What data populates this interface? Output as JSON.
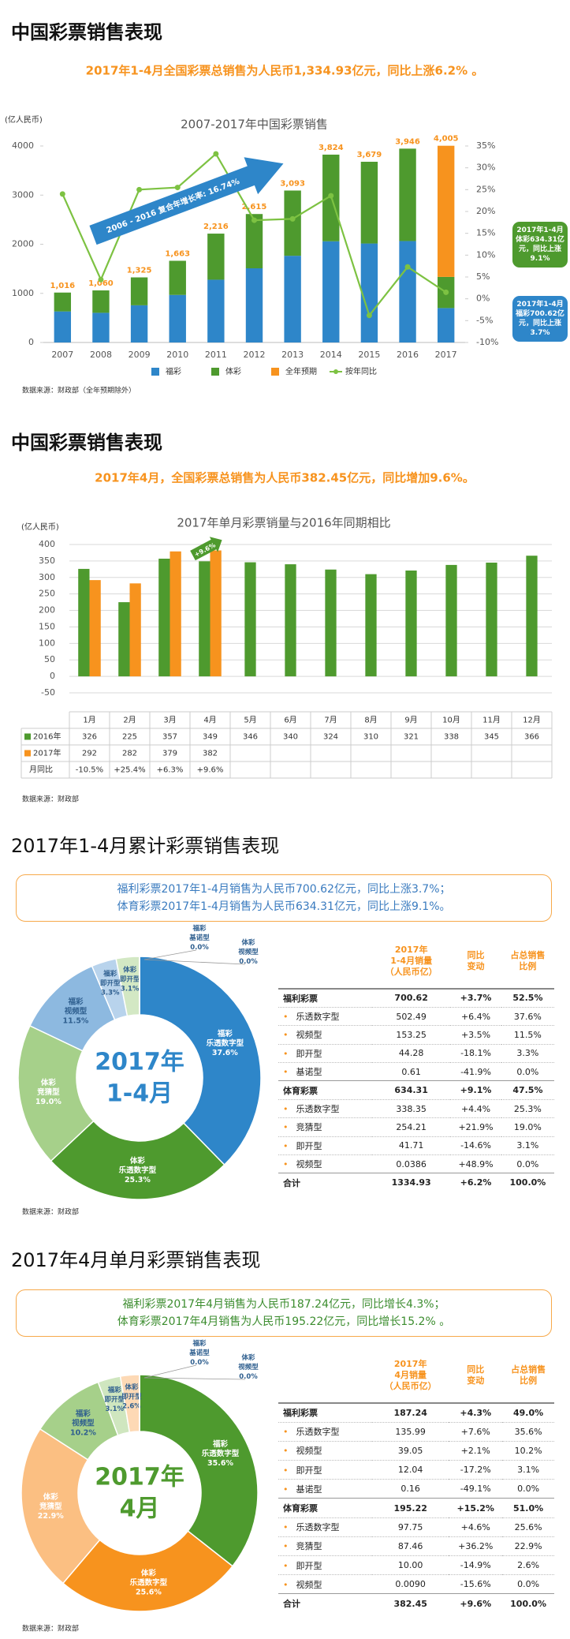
{
  "sections": [
    {
      "title": "中国彩票销售表现",
      "summary": "2017年1-4月全国彩票总销售为人民币1,334.93亿元，同比上涨6.2% 。",
      "source": "数据来源：财政部（全年预期除外）"
    },
    {
      "title": "中国彩票销售表现",
      "summary": "2017年4月，全国彩票总销售为人民币382.45亿元，同比增加9.6%。",
      "source": "数据来源：财政部"
    },
    {
      "title": "2017年1-4月累计彩票销售表现",
      "summary": [
        "福利彩票2017年1-4月销售为人民币700.62亿元，同比上涨3.7%；",
        "体育彩票2017年1-4月销售为人民币634.31亿元，同比上涨9.1%。"
      ],
      "source": "数据来源：财政部"
    },
    {
      "title": "2017年4月单月彩票销售表现",
      "summary": [
        "福利彩票2017年4月销售为人民币187.24亿元，同比增长4.3%；",
        "体育彩票2017年4月销售为人民币195.22亿元，同比增长15.2% 。"
      ],
      "source": "数据来源：财政部"
    }
  ],
  "chart_data": [
    {
      "type": "combo",
      "title": "2007-2017年中国彩票销售",
      "y_label": "(亿人民币)",
      "categories": [
        "2007",
        "2008",
        "2009",
        "2010",
        "2011",
        "2012",
        "2013",
        "2014",
        "2015",
        "2016",
        "2017"
      ],
      "series": [
        {
          "name": "福彩",
          "type": "bar",
          "color": "#2e86c9",
          "values": [
            632,
            604,
            757,
            968,
            1278,
            1510,
            1765,
            2060,
            2015,
            2065,
            700.62
          ]
        },
        {
          "name": "体彩",
          "type": "bar",
          "color": "#4e9a2e",
          "values": [
            384,
            456,
            568,
            695,
            938,
            1105,
            1328,
            1764,
            1664,
            1881,
            634.31
          ]
        },
        {
          "name": "全年预期",
          "type": "bar",
          "color": "#f7931e",
          "values": [
            null,
            null,
            null,
            null,
            null,
            null,
            null,
            null,
            null,
            null,
            2670
          ]
        },
        {
          "name": "按年同比",
          "type": "line",
          "axis": "y2",
          "color": "#7dc242",
          "values": [
            24,
            4.4,
            25,
            25.5,
            33.2,
            18,
            18.3,
            23.6,
            -3.8,
            7.3,
            1.5
          ]
        }
      ],
      "totals": [
        1016,
        1060,
        1325,
        1663,
        2216,
        2615,
        3093,
        3824,
        3679,
        3946,
        4005
      ],
      "total_labels": [
        "1,016",
        "1,060",
        "1,325",
        "1,663",
        "2,216",
        "2,615",
        "3,093",
        "3,824",
        "3,679",
        "3,946",
        "4,005"
      ],
      "stacked": true,
      "grid": false,
      "ylim": [
        0,
        4000
      ],
      "yticks": [
        0,
        1000,
        2000,
        3000,
        4000
      ],
      "y2lim": [
        -10,
        35
      ],
      "y2ticks": [
        {
          "value": -10,
          "label": "-10%"
        },
        {
          "value": -5,
          "label": "-5%"
        },
        {
          "value": 0,
          "label": "0%"
        },
        {
          "value": 5,
          "label": "5%"
        },
        {
          "value": 10,
          "label": "10%"
        },
        {
          "value": 15,
          "label": "15%"
        },
        {
          "value": 20,
          "label": "20%"
        },
        {
          "value": 25,
          "label": "25%"
        },
        {
          "value": 30,
          "label": "30%"
        },
        {
          "value": 35,
          "label": "35%"
        }
      ],
      "annotations": [
        "2006 - 2016 复合年增长率: 16.74%",
        "2017年1-4月体彩634.31亿元，同比上涨9.1%",
        "2017年1-4月福彩700.62亿元，同比上涨3.7%"
      ]
    },
    {
      "type": "bar",
      "title": "2017年单月彩票销量与2016年同期相比",
      "y_label": "(亿人民币)",
      "categories": [
        "1月",
        "2月",
        "3月",
        "4月",
        "5月",
        "6月",
        "7月",
        "8月",
        "9月",
        "10月",
        "11月",
        "12月"
      ],
      "series": [
        {
          "name": "2016年",
          "color": "#4e9a2e",
          "values": [
            326,
            225,
            357,
            349,
            346,
            340,
            324,
            310,
            321,
            338,
            345,
            366
          ]
        },
        {
          "name": "2017年",
          "color": "#f7931e",
          "values": [
            292,
            282,
            379,
            382,
            null,
            null,
            null,
            null,
            null,
            null,
            null,
            null
          ]
        }
      ],
      "yoy": {
        "name": "月同比",
        "values": [
          -10.5,
          25.4,
          6.3,
          9.6,
          null,
          null,
          null,
          null,
          null,
          null,
          null,
          null
        ],
        "value_labels": [
          "-10.5%",
          "+25.4%",
          "+6.3%",
          "+9.6%",
          null,
          null,
          null,
          null,
          null,
          null,
          null,
          null
        ]
      },
      "annotation": "+9.6%",
      "ylim": [
        -50,
        400
      ],
      "yticks": [
        -50,
        0,
        50,
        100,
        150,
        200,
        250,
        300,
        350,
        400
      ],
      "grid": true
    },
    {
      "type": "donut",
      "center_text": [
        "2017年",
        "1-4月"
      ],
      "center_color": "#2e86c9",
      "groups": [
        "福彩",
        "体彩",
        "体彩",
        "福彩",
        "福彩",
        "体彩",
        "福彩",
        "体彩"
      ],
      "categories": [
        "乐透数字型",
        "乐透数字型",
        "竞猜型",
        "视频型",
        "即开型",
        "即开型",
        "基诺型",
        "视频型"
      ],
      "values": [
        37.6,
        25.3,
        19.0,
        11.5,
        3.3,
        3.1,
        0.0,
        0.0
      ],
      "value_labels": [
        "37.6%",
        "25.3%",
        "19.0%",
        "11.5%",
        "3.3%",
        "3.1%",
        "0.0%",
        "0.0%"
      ],
      "colors": [
        "#2e86c9",
        "#4e9a2e",
        "#a6d08a",
        "#8db9e0",
        "#b8d3ec",
        "#d3e8c4",
        "#5a9bd5",
        "#6aaa45"
      ]
    },
    {
      "type": "donut",
      "center_text": [
        "2017年",
        "4月"
      ],
      "center_color": "#4e9a2e",
      "groups": [
        "福彩",
        "体彩",
        "体彩",
        "福彩",
        "福彩",
        "体彩",
        "福彩",
        "体彩"
      ],
      "categories": [
        "乐透数字型",
        "乐透数字型",
        "竞猜型",
        "视频型",
        "即开型",
        "即开型",
        "基诺型",
        "视频型"
      ],
      "values": [
        35.6,
        25.6,
        22.9,
        10.2,
        3.1,
        2.6,
        0.0,
        0.0
      ],
      "value_labels": [
        "35.6%",
        "25.6%",
        "22.9%",
        "10.2%",
        "3.1%",
        "2.6%",
        "0.0%",
        "0.0%"
      ],
      "colors": [
        "#4e9a2e",
        "#f7931e",
        "#fbbf82",
        "#a6d08a",
        "#cfe6bf",
        "#fdd9b5",
        "#6aaa45",
        "#f9a94a"
      ]
    }
  ],
  "tables": [
    {
      "columns": [
        [
          "2017年",
          "1-4月销量",
          "（人民币亿）"
        ],
        [
          "同比",
          "变动"
        ],
        [
          "占总销售",
          "比例"
        ]
      ],
      "rows": [
        [
          "福利彩票",
          "700.62",
          "+3.7%",
          "52.5%"
        ],
        [
          "乐透数字型",
          "502.49",
          "+6.4%",
          "37.6%"
        ],
        [
          "视频型",
          "153.25",
          "+3.5%",
          "11.5%"
        ],
        [
          "即开型",
          "44.28",
          "-18.1%",
          "3.3%"
        ],
        [
          "基诺型",
          "0.61",
          "-41.9%",
          "0.0%"
        ],
        [
          "体育彩票",
          "634.31",
          "+9.1%",
          "47.5%"
        ],
        [
          "乐透数字型",
          "338.35",
          "+4.4%",
          "25.3%"
        ],
        [
          "竞猜型",
          "254.21",
          "+21.9%",
          "19.0%"
        ],
        [
          "即开型",
          "41.71",
          "-14.6%",
          "3.1%"
        ],
        [
          "视频型",
          "0.0386",
          "+48.9%",
          "0.0%"
        ],
        [
          "合计",
          "1334.93",
          "+6.2%",
          "100.0%"
        ]
      ]
    },
    {
      "columns": [
        [
          "2017年",
          "4月销量",
          "（人民币亿）"
        ],
        [
          "同比",
          "变动"
        ],
        [
          "占总销售",
          "比例"
        ]
      ],
      "rows": [
        [
          "福利彩票",
          "187.24",
          "+4.3%",
          "49.0%"
        ],
        [
          "乐透数字型",
          "135.99",
          "+7.6%",
          "35.6%"
        ],
        [
          "视频型",
          "39.05",
          "+2.1%",
          "10.2%"
        ],
        [
          "即开型",
          "12.04",
          "-17.2%",
          "3.1%"
        ],
        [
          "基诺型",
          "0.16",
          "-49.1%",
          "0.0%"
        ],
        [
          "体育彩票",
          "195.22",
          "+15.2%",
          "51.0%"
        ],
        [
          "乐透数字型",
          "97.75",
          "+4.6%",
          "25.6%"
        ],
        [
          "竞猜型",
          "87.46",
          "+36.2%",
          "22.9%"
        ],
        [
          "即开型",
          "10.00",
          "-14.9%",
          "2.6%"
        ],
        [
          "视频型",
          "0.0090",
          "-15.6%",
          "0.0%"
        ],
        [
          "合计",
          "382.45",
          "+9.6%",
          "100.0%"
        ]
      ]
    }
  ]
}
